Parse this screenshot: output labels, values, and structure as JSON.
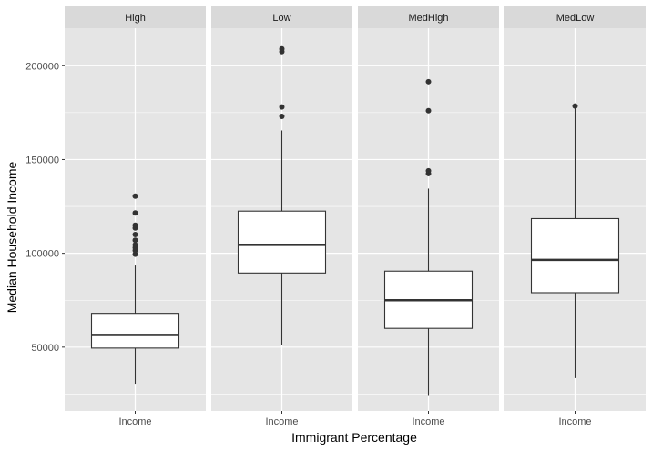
{
  "chart_data": {
    "type": "box",
    "xlabel": "Immigrant Percentage",
    "ylabel": "Median Household Income",
    "ylim": [
      16000,
      220000
    ],
    "y_ticks": [
      50000,
      100000,
      150000,
      200000
    ],
    "y_tick_labels": [
      "50000",
      "100000",
      "150000",
      "200000"
    ],
    "y_minor_ticks": [
      25000,
      75000,
      125000,
      175000
    ],
    "x_tick_label": "Income",
    "facet_order": [
      "High",
      "Low",
      "MedHigh",
      "MedLow"
    ],
    "panels": [
      {
        "facet": "High",
        "category": "Income",
        "whisker_low": 30500,
        "q1": 49500,
        "median": 56500,
        "q3": 68000,
        "whisker_high": 93500,
        "outliers": [
          99500,
          101500,
          103000,
          104500,
          107000,
          110000,
          113500,
          115000,
          121500,
          130500
        ]
      },
      {
        "facet": "Low",
        "category": "Income",
        "whisker_low": 51000,
        "q1": 89500,
        "median": 104500,
        "q3": 122500,
        "whisker_high": 165500,
        "outliers": [
          173000,
          178000,
          207500,
          209000
        ]
      },
      {
        "facet": "MedHigh",
        "category": "Income",
        "whisker_low": 24000,
        "q1": 60000,
        "median": 75000,
        "q3": 90500,
        "whisker_high": 134500,
        "outliers": [
          142500,
          144000,
          176000,
          191500
        ]
      },
      {
        "facet": "MedLow",
        "category": "Income",
        "whisker_low": 33500,
        "q1": 79000,
        "median": 96500,
        "q3": 118500,
        "whisker_high": 178500,
        "outliers": [
          178500
        ]
      }
    ],
    "colors": {
      "panel_background": "#e5e5e5",
      "strip_background": "#d9d9d9",
      "grid": "#ffffff",
      "box_fill": "#ffffff",
      "box_line": "#333333",
      "outlier": "#333333"
    }
  }
}
